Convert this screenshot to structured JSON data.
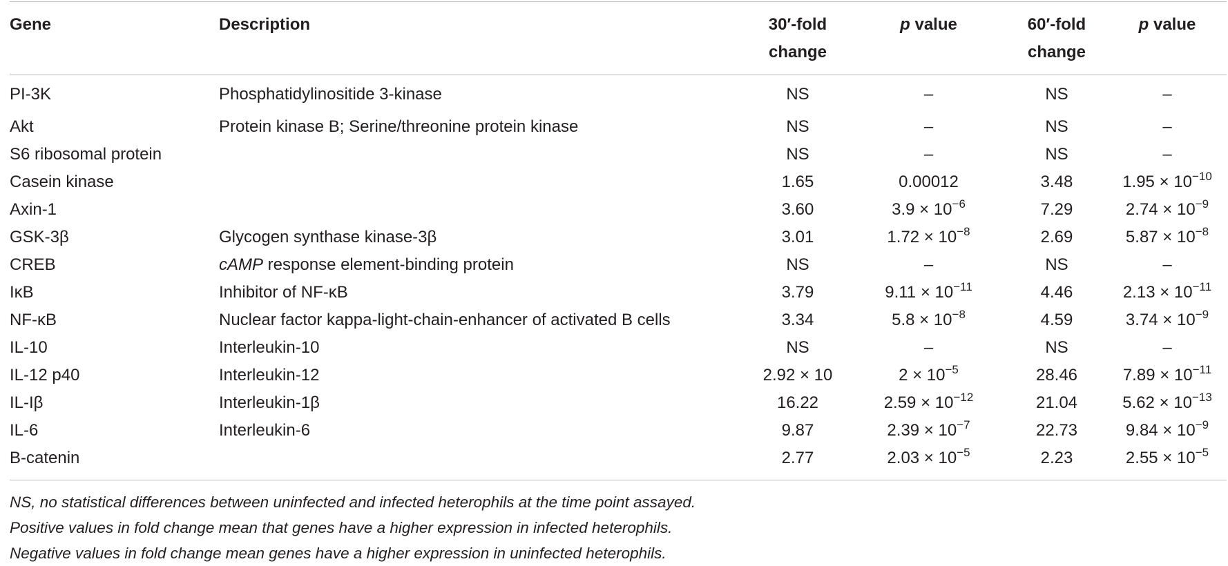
{
  "columns": {
    "gene": "Gene",
    "description": "Description",
    "fold30_line1": "30′-fold",
    "fold30_line2": "change",
    "p30_italic": "p",
    "p30_rest": " value",
    "fold60_line1": "60′-fold",
    "fold60_line2": "change",
    "p60_italic": "p",
    "p60_rest": " value"
  },
  "rows": [
    {
      "gene": "PI-3K",
      "description": "Phosphatidylinositide 3-kinase",
      "fold30": "NS",
      "p30": {
        "base": "–",
        "exp": ""
      },
      "fold60": "NS",
      "p60": {
        "base": "–",
        "exp": ""
      }
    },
    {
      "gene": "Akt",
      "description": "Protein kinase B; Serine/threonine protein kinase",
      "fold30": "NS",
      "p30": {
        "base": "–",
        "exp": ""
      },
      "fold60": "NS",
      "p60": {
        "base": "–",
        "exp": ""
      }
    },
    {
      "gene": "S6 ribosomal protein",
      "description": "",
      "fold30": "NS",
      "p30": {
        "base": "–",
        "exp": ""
      },
      "fold60": "NS",
      "p60": {
        "base": "–",
        "exp": ""
      }
    },
    {
      "gene": "Casein kinase",
      "description": "",
      "fold30": "1.65",
      "p30": {
        "base": "0.00012",
        "exp": ""
      },
      "fold60": "3.48",
      "p60": {
        "base": "1.95 × 10",
        "exp": "−10"
      }
    },
    {
      "gene": "Axin-1",
      "description": "",
      "fold30": "3.60",
      "p30": {
        "base": "3.9 × 10",
        "exp": "−6"
      },
      "fold60": "7.29",
      "p60": {
        "base": "2.74 × 10",
        "exp": "−9"
      }
    },
    {
      "gene": "GSK-3β",
      "description": "Glycogen synthase kinase-3β",
      "fold30": "3.01",
      "p30": {
        "base": "1.72 × 10",
        "exp": "−8"
      },
      "fold60": "2.69",
      "p60": {
        "base": "5.87 × 10",
        "exp": "−8"
      }
    },
    {
      "gene": "CREB",
      "description_italic": "cAMP",
      "description": " response element-binding protein",
      "fold30": "NS",
      "p30": {
        "base": "–",
        "exp": ""
      },
      "fold60": "NS",
      "p60": {
        "base": "–",
        "exp": ""
      }
    },
    {
      "gene": "IκB",
      "description": "Inhibitor of NF-κB",
      "fold30": "3.79",
      "p30": {
        "base": "9.11 × 10",
        "exp": "−11"
      },
      "fold60": "4.46",
      "p60": {
        "base": "2.13 × 10",
        "exp": "−11"
      }
    },
    {
      "gene": "NF-κB",
      "description": "Nuclear factor kappa-light-chain-enhancer of activated B cells",
      "fold30": "3.34",
      "p30": {
        "base": "5.8 × 10",
        "exp": "−8"
      },
      "fold60": "4.59",
      "p60": {
        "base": "3.74 × 10",
        "exp": "−9"
      }
    },
    {
      "gene": "IL-10",
      "description": "Interleukin-10",
      "fold30": "NS",
      "p30": {
        "base": "–",
        "exp": ""
      },
      "fold60": "NS",
      "p60": {
        "base": "–",
        "exp": ""
      }
    },
    {
      "gene": "IL-12 p40",
      "description": "Interleukin-12",
      "fold30": "2.92 × 10",
      "p30": {
        "base": "2 × 10",
        "exp": "−5"
      },
      "fold60": "28.46",
      "p60": {
        "base": "7.89 × 10",
        "exp": "−11"
      }
    },
    {
      "gene": "IL-Iβ",
      "description": "Interleukin-1β",
      "fold30": "16.22",
      "p30": {
        "base": "2.59 × 10",
        "exp": "−12"
      },
      "fold60": "21.04",
      "p60": {
        "base": "5.62 × 10",
        "exp": "−13"
      }
    },
    {
      "gene": "IL-6",
      "description": "Interleukin-6",
      "fold30": "9.87",
      "p30": {
        "base": "2.39 × 10",
        "exp": "−7"
      },
      "fold60": "22.73",
      "p60": {
        "base": "9.84 × 10",
        "exp": "−9"
      }
    },
    {
      "gene": "B-catenin",
      "description": "",
      "fold30": "2.77",
      "p30": {
        "base": "2.03 × 10",
        "exp": "−5"
      },
      "fold60": "2.23",
      "p60": {
        "base": "2.55 × 10",
        "exp": "−5"
      }
    }
  ],
  "notes": [
    "NS, no statistical differences between uninfected and infected heterophils at the time point assayed.",
    "Positive values in fold change mean that genes have a higher expression in infected heterophils.",
    "Negative values in fold change mean genes have a higher expression in uninfected heterophils."
  ]
}
